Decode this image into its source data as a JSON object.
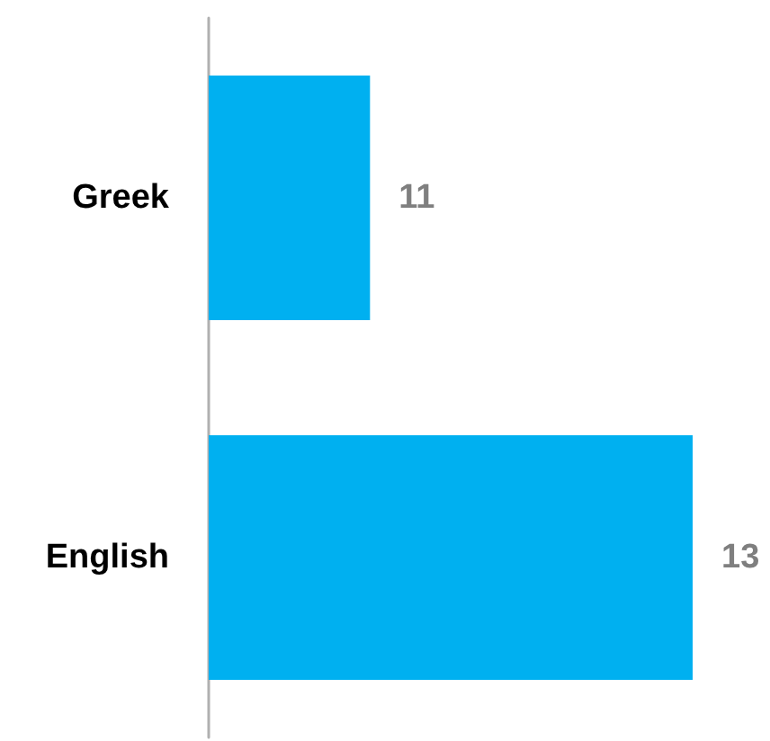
{
  "chart_data": {
    "type": "bar",
    "orientation": "horizontal",
    "categories": [
      "Greek",
      "English"
    ],
    "values": [
      11,
      13
    ],
    "color": "#00b0f0",
    "xlim": [
      10,
      13
    ],
    "data_labels": true
  }
}
